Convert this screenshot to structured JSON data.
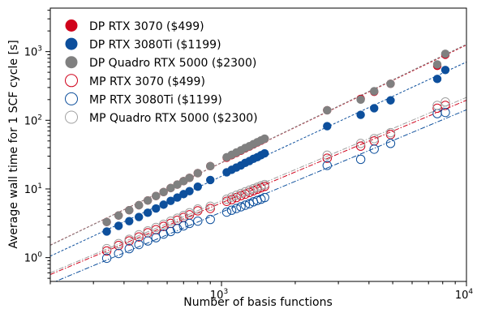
{
  "chart_data": {
    "type": "scatter",
    "title": "",
    "xlabel": "Number of basis functions",
    "ylabel": "Average wall time for 1 SCF cycle [s]",
    "xscale": "log",
    "yscale": "log",
    "xlim": [
      200,
      10000
    ],
    "ylim": [
      0.45,
      4300
    ],
    "x_tick_labels": [
      {
        "value": 1000,
        "base": "10",
        "exp": "3"
      },
      {
        "value": 10000,
        "base": "10",
        "exp": "4"
      }
    ],
    "y_tick_labels": [
      {
        "value": 1,
        "base": "10",
        "exp": "0"
      },
      {
        "value": 10,
        "base": "10",
        "exp": "1"
      },
      {
        "value": 100,
        "base": "10",
        "exp": "2"
      },
      {
        "value": 1000,
        "base": "10",
        "exp": "3"
      }
    ],
    "legend_position": "top-left",
    "grid": false,
    "fit_lines": "dashed power-law fit per series",
    "series": [
      {
        "name": "DP RTX 3070 ($499)",
        "color": "#d0021b",
        "marker": "filled",
        "line": "dashed",
        "x": [
          340,
          380,
          420,
          460,
          500,
          540,
          580,
          620,
          660,
          700,
          740,
          800,
          900,
          1050,
          1100,
          1150,
          1200,
          1250,
          1300,
          1350,
          1400,
          1450,
          1500,
          2700,
          3700,
          4200,
          4900,
          7600,
          8200
        ],
        "y": [
          3.3,
          4.1,
          4.9,
          5.8,
          6.8,
          7.9,
          9.0,
          10.3,
          11.6,
          13.0,
          14.5,
          17.0,
          21.5,
          28.5,
          31,
          33.5,
          36,
          39,
          41.5,
          44.5,
          47.5,
          50.5,
          53.5,
          140,
          205,
          260,
          340,
          620,
          900
        ]
      },
      {
        "name": "DP RTX 3080Ti ($1199)",
        "color": "#0d4f9c",
        "marker": "filled",
        "line": "dashed",
        "x": [
          340,
          380,
          420,
          460,
          500,
          540,
          580,
          620,
          660,
          700,
          740,
          800,
          900,
          1050,
          1100,
          1150,
          1200,
          1250,
          1300,
          1350,
          1400,
          1450,
          1500,
          2700,
          3700,
          4200,
          4900,
          7600,
          8200
        ],
        "y": [
          2.4,
          2.9,
          3.4,
          3.9,
          4.5,
          5.2,
          5.9,
          6.7,
          7.5,
          8.4,
          9.3,
          10.8,
          13.5,
          17.5,
          19.0,
          20.5,
          22.0,
          24.0,
          25.5,
          27.5,
          29.0,
          31.0,
          33.0,
          82,
          120,
          150,
          195,
          400,
          540
        ]
      },
      {
        "name": "DP Quadro RTX 5000 ($2300)",
        "color": "#808080",
        "marker": "filled",
        "line": "dashed",
        "x": [
          340,
          380,
          420,
          460,
          500,
          540,
          580,
          620,
          660,
          700,
          740,
          800,
          900,
          1050,
          1100,
          1150,
          1200,
          1250,
          1300,
          1350,
          1400,
          1450,
          1500,
          2700,
          3700,
          4200,
          4900,
          7600,
          8200
        ],
        "y": [
          3.3,
          4.1,
          4.9,
          5.8,
          6.8,
          7.9,
          9.0,
          10.3,
          11.6,
          13.0,
          14.5,
          17.0,
          21.5,
          29,
          31.5,
          34,
          36.5,
          39.5,
          42,
          45,
          48,
          51,
          54,
          140,
          200,
          265,
          340,
          650,
          930
        ]
      },
      {
        "name": "MP RTX 3070 ($499)",
        "color": "#d0021b",
        "marker": "open",
        "line": "dash-dot",
        "x": [
          340,
          380,
          420,
          460,
          500,
          540,
          580,
          620,
          660,
          700,
          740,
          800,
          900,
          1050,
          1100,
          1150,
          1200,
          1250,
          1300,
          1350,
          1400,
          1450,
          1500,
          2700,
          3700,
          4200,
          4900,
          7600,
          8200
        ],
        "y": [
          1.25,
          1.5,
          1.75,
          2.0,
          2.3,
          2.55,
          2.85,
          3.15,
          3.5,
          3.85,
          4.2,
          4.8,
          5.2,
          6.6,
          7.0,
          7.5,
          8.0,
          8.4,
          8.9,
          9.4,
          9.9,
          10.4,
          10.9,
          28,
          42,
          50,
          62,
          150,
          165
        ]
      },
      {
        "name": "MP RTX 3080Ti ($1199)",
        "color": "#0d4f9c",
        "marker": "open",
        "line": "dash-dot",
        "x": [
          340,
          380,
          420,
          460,
          500,
          540,
          580,
          620,
          660,
          700,
          740,
          800,
          900,
          1050,
          1100,
          1150,
          1200,
          1250,
          1300,
          1350,
          1400,
          1450,
          1500,
          2700,
          3700,
          4200,
          4900,
          7600,
          8200
        ],
        "y": [
          0.98,
          1.15,
          1.35,
          1.55,
          1.75,
          1.95,
          2.2,
          2.4,
          2.65,
          2.9,
          3.15,
          3.4,
          3.6,
          4.6,
          4.9,
          5.2,
          5.5,
          5.8,
          6.1,
          6.5,
          6.8,
          7.1,
          7.5,
          22,
          27,
          38,
          46,
          125,
          130
        ]
      },
      {
        "name": "MP Quadro RTX 5000 ($2300)",
        "color": "#a0a0a0",
        "marker": "open",
        "line": "dash-dot",
        "x": [
          340,
          380,
          420,
          460,
          500,
          540,
          580,
          620,
          660,
          700,
          740,
          800,
          900,
          1050,
          1100,
          1150,
          1200,
          1250,
          1300,
          1350,
          1400,
          1450,
          1500,
          2700,
          3700,
          4200,
          4900,
          7600,
          8200
        ],
        "y": [
          1.35,
          1.6,
          1.85,
          2.15,
          2.45,
          2.75,
          3.05,
          3.4,
          3.75,
          4.1,
          4.5,
          5.1,
          5.6,
          7.1,
          7.6,
          8.1,
          8.6,
          9.1,
          9.6,
          10.1,
          10.6,
          11.1,
          11.6,
          31,
          46,
          54,
          66,
          165,
          185
        ]
      }
    ]
  }
}
